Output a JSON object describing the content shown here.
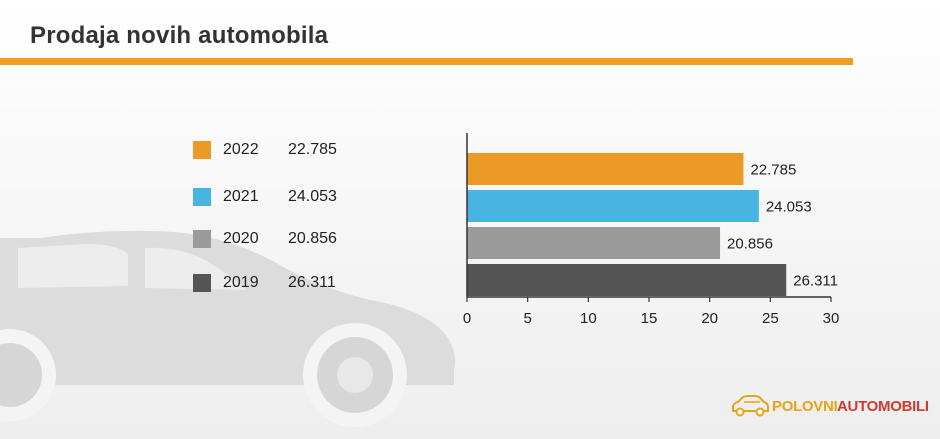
{
  "title": "Prodaja novih automobila",
  "colors": {
    "accent": "#f0a020",
    "series": [
      "#ea9a25",
      "#48b4e2",
      "#9b9b9b",
      "#555555"
    ]
  },
  "legend": [
    {
      "year": "2022",
      "value": "22.785",
      "color": "#ea9a25"
    },
    {
      "year": "2021",
      "value": "24.053",
      "color": "#48b4e2"
    },
    {
      "year": "2020",
      "value": "20.856",
      "color": "#9b9b9b"
    },
    {
      "year": "2019",
      "value": "26.311",
      "color": "#555555"
    }
  ],
  "chart_data": {
    "type": "bar",
    "orientation": "horizontal",
    "title": "Prodaja novih automobila",
    "categories": [
      "2022",
      "2021",
      "2020",
      "2019"
    ],
    "values": [
      22.785,
      24.053,
      20.856,
      26.311
    ],
    "data_labels": [
      "22.785",
      "24.053",
      "20.856",
      "26.311"
    ],
    "colors": [
      "#ea9a25",
      "#48b4e2",
      "#9b9b9b",
      "#555555"
    ],
    "xlim": [
      0,
      30
    ],
    "xticks": [
      0,
      5,
      10,
      15,
      20,
      25,
      30
    ],
    "xlabel": "",
    "ylabel": "",
    "grid": false
  },
  "logo": {
    "part1": "POLOVNI",
    "part2": "AUTOMOBILI",
    "icon": "car-outline-icon"
  }
}
